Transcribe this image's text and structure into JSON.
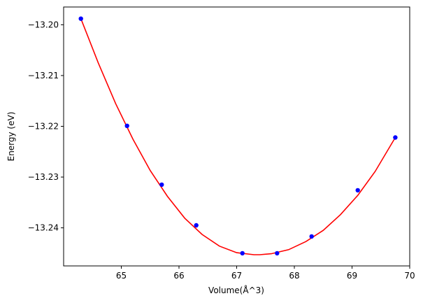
{
  "chart_data": {
    "type": "scatter",
    "title": "",
    "xlabel": "Volume(Å^3)",
    "ylabel": "Energy (eV)",
    "xlim": [
      64.0,
      70.0
    ],
    "ylim": [
      -13.2475,
      -13.1965
    ],
    "xticks": [
      65,
      66,
      67,
      68,
      69,
      70
    ],
    "xtick_labels": [
      "65",
      "66",
      "67",
      "68",
      "69",
      "70"
    ],
    "yticks": [
      -13.2,
      -13.21,
      -13.22,
      -13.23,
      -13.24
    ],
    "ytick_labels": [
      "−13.20",
      "−13.21",
      "−13.22",
      "−13.23",
      "−13.24"
    ],
    "grid": false,
    "series": [
      {
        "kind": "scatter",
        "color": "#0000ff",
        "x": [
          64.3,
          65.1,
          65.7,
          66.3,
          67.1,
          67.7,
          68.3,
          69.1,
          69.75
        ],
        "y": [
          -13.1988,
          -13.2199,
          -13.2315,
          -13.2395,
          -13.245,
          -13.245,
          -13.2417,
          -13.2326,
          -13.2222
        ]
      },
      {
        "kind": "fit-line",
        "color": "#ff0000",
        "x": [
          64.3,
          64.6,
          64.9,
          65.2,
          65.5,
          65.8,
          66.1,
          66.4,
          66.7,
          67.0,
          67.3,
          67.4,
          67.6,
          67.9,
          68.2,
          68.5,
          68.8,
          69.1,
          69.4,
          69.75
        ],
        "y": [
          -13.1988,
          -13.2075,
          -13.2155,
          -13.2225,
          -13.2287,
          -13.2338,
          -13.2381,
          -13.2413,
          -13.2436,
          -13.2449,
          -13.2453,
          -13.2453,
          -13.2451,
          -13.2443,
          -13.2427,
          -13.2405,
          -13.2374,
          -13.2336,
          -13.2289,
          -13.2222
        ]
      }
    ]
  }
}
